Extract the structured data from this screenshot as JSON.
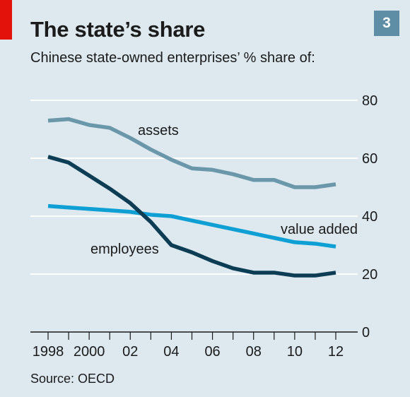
{
  "header": {
    "title": "The state’s share",
    "subtitle": "Chinese state-owned enterprises’ % share of:",
    "badge": "3"
  },
  "footer": {
    "source": "Source: OECD"
  },
  "colors": {
    "background": "#dde8ef",
    "accent_red": "#e3120b",
    "badge": "#5e8ea6",
    "assets": "#6b97aa",
    "value_added": "#0ea0d4",
    "employees": "#0c3d55",
    "gridline": "#ffffff",
    "axis": "#1b1b1b"
  },
  "chart_data": {
    "type": "line",
    "title": "The state’s share",
    "subtitle": "Chinese state-owned enterprises’ % share of:",
    "x": [
      1998,
      1999,
      2000,
      2001,
      2002,
      2003,
      2004,
      2005,
      2006,
      2007,
      2008,
      2009,
      2010,
      2011,
      2012
    ],
    "x_tick_values": [
      1998,
      2000,
      2002,
      2004,
      2006,
      2008,
      2010,
      2012
    ],
    "x_tick_labels": [
      "1998",
      "2000",
      "02",
      "04",
      "06",
      "08",
      "10",
      "12"
    ],
    "y_ticks": [
      0,
      20,
      40,
      60,
      80
    ],
    "ylim": [
      0,
      80
    ],
    "grid": true,
    "y_axis_side": "right",
    "series": [
      {
        "name": "assets",
        "color": "#6b97aa",
        "values": [
          73,
          73.5,
          71.5,
          70.5,
          67,
          63,
          59.5,
          56.5,
          56,
          54.5,
          52.5,
          52.5,
          50,
          50,
          51
        ]
      },
      {
        "name": "value added",
        "color": "#0ea0d4",
        "values": [
          43.5,
          43,
          42.5,
          42,
          41.5,
          40.5,
          40,
          38.5,
          37,
          35.5,
          34,
          32.5,
          31,
          30.5,
          29.5
        ]
      },
      {
        "name": "employees",
        "color": "#0c3d55",
        "values": [
          60.5,
          58.5,
          54,
          49.5,
          44.5,
          38,
          30,
          27.5,
          24.5,
          22,
          20.5,
          20.5,
          19.5,
          19.5,
          20.5
        ]
      }
    ],
    "source": "Source: OECD"
  }
}
